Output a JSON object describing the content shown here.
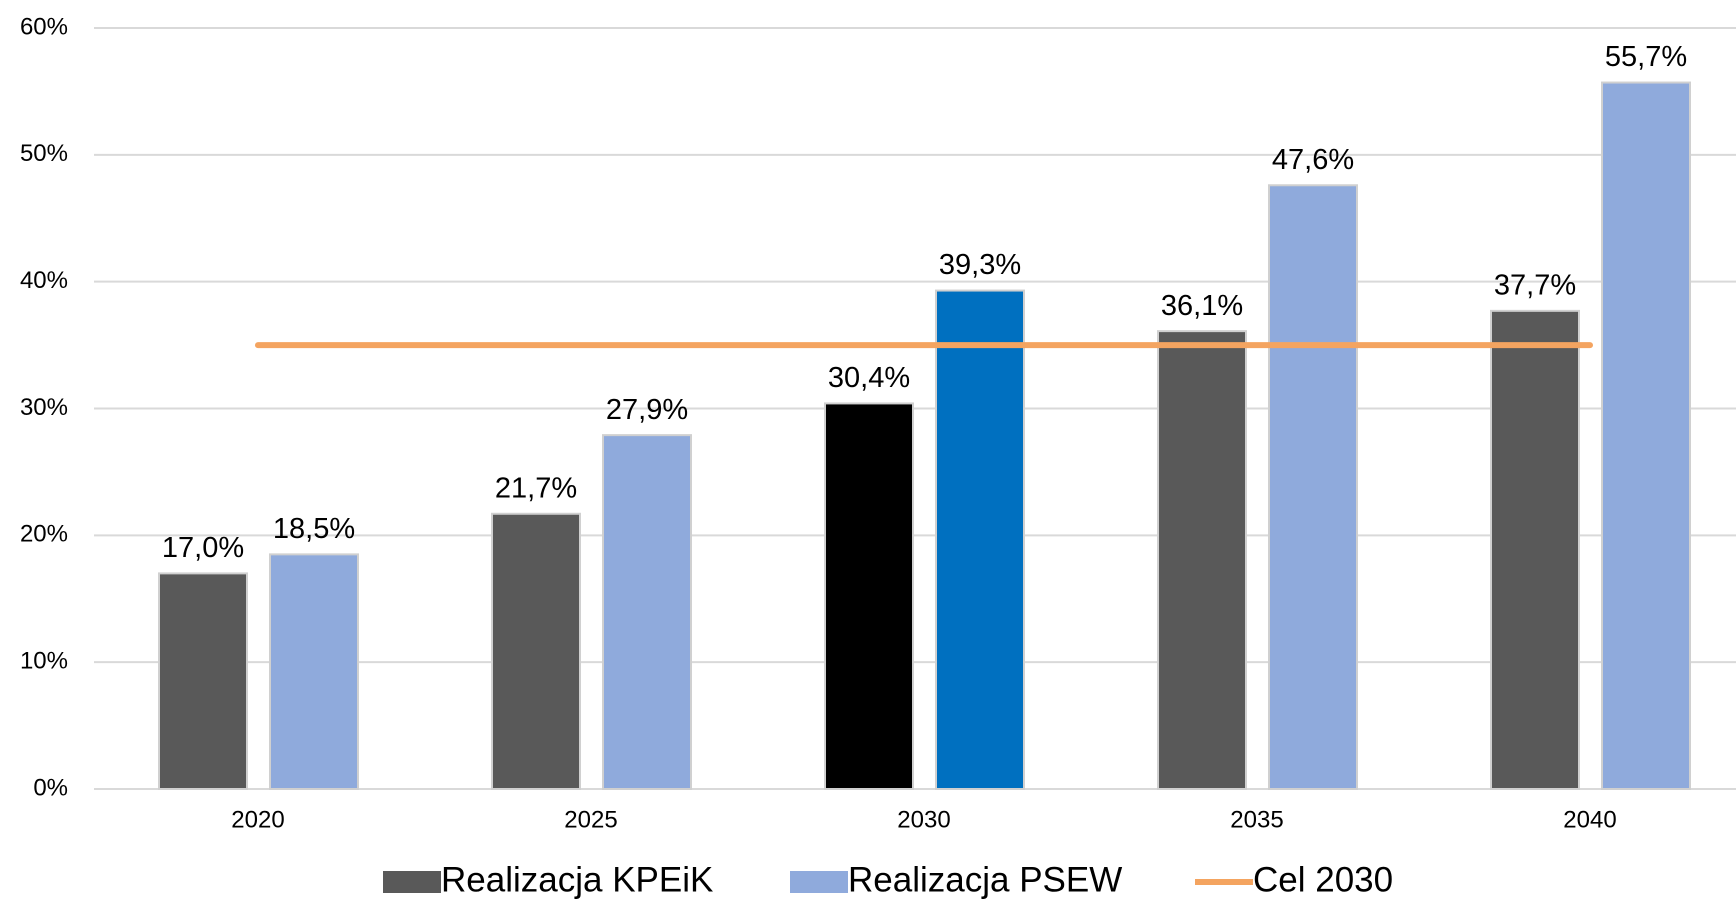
{
  "chart_data": {
    "type": "bar",
    "categories": [
      "2020",
      "2025",
      "2030",
      "2035",
      "2040"
    ],
    "series": [
      {
        "name": "Realizacja KPEiK",
        "color": "#595959",
        "colors": [
          "#595959",
          "#595959",
          "#000000",
          "#595959",
          "#595959"
        ],
        "values": [
          17.0,
          21.7,
          30.4,
          36.1,
          37.7
        ],
        "value_labels": [
          "17,0%",
          "21,7%",
          "30,4%",
          "36,1%",
          "37,7%"
        ]
      },
      {
        "name": "Realizacja PSEW",
        "color": "#8faadc",
        "colors": [
          "#8faadc",
          "#8faadc",
          "#0070c0",
          "#8faadc",
          "#8faadc"
        ],
        "values": [
          18.5,
          27.9,
          39.3,
          47.6,
          55.7
        ],
        "value_labels": [
          "18,5%",
          "27,9%",
          "39,3%",
          "47,6%",
          "55,7%"
        ]
      },
      {
        "name": "Cel 2030",
        "type": "line",
        "color": "#f4a460",
        "values": [
          35,
          35,
          35,
          35,
          35
        ]
      }
    ],
    "ylim": [
      0,
      60
    ],
    "yticks": [
      {
        "value": 0,
        "label": "0%"
      },
      {
        "value": 10,
        "label": "10%"
      },
      {
        "value": 20,
        "label": "20%"
      },
      {
        "value": 30,
        "label": "30%"
      },
      {
        "value": 40,
        "label": "40%"
      },
      {
        "value": 50,
        "label": "50%"
      },
      {
        "value": 60,
        "label": "60%"
      }
    ],
    "grid": true,
    "legend": "bottom"
  }
}
